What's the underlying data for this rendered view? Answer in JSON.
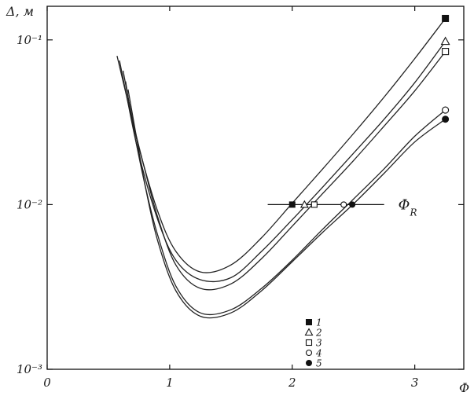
{
  "chart_data": {
    "type": "line",
    "title": "",
    "xlabel": "Φ",
    "ylabel": "Δ, м",
    "x_scale": "linear",
    "y_scale": "log",
    "xlim": [
      0,
      3.4
    ],
    "ylim": [
      0.001,
      0.16
    ],
    "x_ticks": [
      "0",
      "1",
      "2",
      "3"
    ],
    "y_ticks": [
      "10⁻³",
      "10⁻²",
      "10⁻¹"
    ],
    "grid": false,
    "legend_position": "bottom-right",
    "series": [
      {
        "name": "1",
        "marker": "filled-square",
        "x": [
          0.57,
          0.65,
          0.75,
          0.9,
          1.05,
          1.25,
          1.5,
          1.75,
          2.0,
          2.25,
          2.5,
          2.75,
          3.0,
          3.25
        ],
        "y": [
          0.08,
          0.045,
          0.022,
          0.0092,
          0.0052,
          0.0039,
          0.0043,
          0.0063,
          0.0102,
          0.0165,
          0.027,
          0.045,
          0.077,
          0.135
        ]
      },
      {
        "name": "2",
        "marker": "open-triangle",
        "x": [
          0.59,
          0.65,
          0.75,
          0.9,
          1.05,
          1.25,
          1.5,
          1.75,
          2.0,
          2.25,
          2.5,
          2.75,
          3.0,
          3.25
        ],
        "y": [
          0.075,
          0.045,
          0.02,
          0.0082,
          0.0046,
          0.0035,
          0.0036,
          0.0052,
          0.0081,
          0.0128,
          0.0205,
          0.033,
          0.055,
          0.098
        ]
      },
      {
        "name": "3",
        "marker": "open-square",
        "x": [
          0.62,
          0.7,
          0.8,
          0.9,
          1.05,
          1.25,
          1.5,
          1.75,
          2.0,
          2.25,
          2.5,
          2.75,
          3.0,
          3.25
        ],
        "y": [
          0.065,
          0.032,
          0.016,
          0.0085,
          0.0043,
          0.0031,
          0.0033,
          0.0047,
          0.0074,
          0.0117,
          0.0185,
          0.03,
          0.049,
          0.085
        ]
      },
      {
        "name": "4",
        "marker": "open-circle",
        "x": [
          0.64,
          0.7,
          0.8,
          0.9,
          1.05,
          1.25,
          1.5,
          1.75,
          2.0,
          2.25,
          2.5,
          2.75,
          3.0,
          3.25
        ],
        "y": [
          0.056,
          0.03,
          0.013,
          0.0066,
          0.0032,
          0.0022,
          0.0023,
          0.0031,
          0.0046,
          0.0071,
          0.0108,
          0.0165,
          0.026,
          0.0375
        ]
      },
      {
        "name": "5",
        "marker": "filled-circle",
        "x": [
          0.66,
          0.72,
          0.8,
          0.9,
          1.05,
          1.25,
          1.5,
          1.75,
          2.0,
          2.25,
          2.5,
          2.75,
          3.0,
          3.25
        ],
        "y": [
          0.05,
          0.028,
          0.013,
          0.0061,
          0.003,
          0.0021,
          0.0022,
          0.003,
          0.0045,
          0.0068,
          0.0101,
          0.0155,
          0.024,
          0.033
        ]
      }
    ],
    "reference_line": {
      "label": "Φ_R",
      "y": 0.01,
      "x_range": [
        1.8,
        2.75
      ],
      "markers": [
        {
          "series": "1",
          "x": 2.0
        },
        {
          "series": "2",
          "x": 2.1
        },
        {
          "series": "3",
          "x": 2.18
        },
        {
          "series": "4",
          "x": 2.42
        },
        {
          "series": "5",
          "x": 2.49
        }
      ]
    }
  }
}
